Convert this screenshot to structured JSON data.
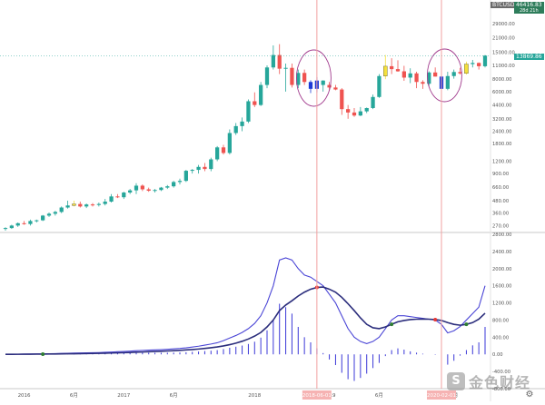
{
  "header": {
    "symbol": "BTCUSD",
    "price": "46416.83",
    "countdown": "28d 21h",
    "last_price": "13869.86"
  },
  "watermark": {
    "text": "金色财经",
    "logo_glyph": "S"
  },
  "settings_icon": "gear-icon",
  "colors": {
    "up": "#26a69a",
    "down": "#ef5350",
    "doji": "#f4e03c",
    "highlight": "#1d3bd6",
    "macd_line": "#2b2d7c",
    "signal_line": "#4b46d6",
    "histogram": "#3b38d8",
    "cross_down": "#e53935",
    "cross_up": "#2e7d32",
    "ellipse": "#a23c8e",
    "vline": "#f2a0a0"
  },
  "chart_data": [
    {
      "type": "candlestick",
      "y_scale": "log",
      "ylim": [
        240,
        46000
      ],
      "y_ticks": [
        "29000.00",
        "21000.00",
        "15000.00",
        "11000.00",
        "8000.00",
        "6000.00",
        "4400.00",
        "3200.00",
        "2400.00",
        "1800.00",
        "1200.00",
        "900.00",
        "660.00",
        "480.00",
        "360.00",
        "270.00"
      ],
      "x_ticks": [
        "2016",
        "6月",
        "2017",
        "6月",
        "2018",
        "2019",
        "6月",
        "6月"
      ],
      "x_highlight_labels": [
        "2018-06-01",
        "2020-02-01"
      ],
      "candles": [
        {
          "o": 250,
          "h": 260,
          "l": 240,
          "c": 255,
          "color": "up"
        },
        {
          "o": 255,
          "h": 275,
          "l": 250,
          "c": 270,
          "color": "up"
        },
        {
          "o": 270,
          "h": 290,
          "l": 262,
          "c": 285,
          "color": "up"
        },
        {
          "o": 285,
          "h": 300,
          "l": 275,
          "c": 280,
          "color": "down"
        },
        {
          "o": 280,
          "h": 310,
          "l": 270,
          "c": 300,
          "color": "up"
        },
        {
          "o": 300,
          "h": 310,
          "l": 290,
          "c": 305,
          "color": "up"
        },
        {
          "o": 305,
          "h": 345,
          "l": 300,
          "c": 340,
          "color": "up"
        },
        {
          "o": 340,
          "h": 365,
          "l": 330,
          "c": 355,
          "color": "up"
        },
        {
          "o": 355,
          "h": 380,
          "l": 340,
          "c": 370,
          "color": "up"
        },
        {
          "o": 370,
          "h": 420,
          "l": 360,
          "c": 410,
          "color": "up"
        },
        {
          "o": 410,
          "h": 480,
          "l": 400,
          "c": 430,
          "color": "up"
        },
        {
          "o": 430,
          "h": 480,
          "l": 420,
          "c": 445,
          "color": "doji"
        },
        {
          "o": 445,
          "h": 470,
          "l": 410,
          "c": 420,
          "color": "down"
        },
        {
          "o": 420,
          "h": 450,
          "l": 405,
          "c": 440,
          "color": "up"
        },
        {
          "o": 440,
          "h": 455,
          "l": 420,
          "c": 435,
          "color": "down"
        },
        {
          "o": 435,
          "h": 460,
          "l": 420,
          "c": 445,
          "color": "up"
        },
        {
          "o": 445,
          "h": 500,
          "l": 430,
          "c": 470,
          "color": "up"
        },
        {
          "o": 470,
          "h": 560,
          "l": 460,
          "c": 530,
          "color": "up"
        },
        {
          "o": 530,
          "h": 560,
          "l": 510,
          "c": 520,
          "color": "down"
        },
        {
          "o": 520,
          "h": 590,
          "l": 500,
          "c": 580,
          "color": "up"
        },
        {
          "o": 580,
          "h": 630,
          "l": 560,
          "c": 610,
          "color": "up"
        },
        {
          "o": 610,
          "h": 720,
          "l": 560,
          "c": 680,
          "color": "up"
        },
        {
          "o": 680,
          "h": 700,
          "l": 600,
          "c": 625,
          "color": "down"
        },
        {
          "o": 625,
          "h": 650,
          "l": 590,
          "c": 605,
          "color": "down"
        },
        {
          "o": 605,
          "h": 630,
          "l": 580,
          "c": 615,
          "color": "up"
        },
        {
          "o": 615,
          "h": 660,
          "l": 600,
          "c": 650,
          "color": "up"
        },
        {
          "o": 650,
          "h": 690,
          "l": 630,
          "c": 670,
          "color": "up"
        },
        {
          "o": 670,
          "h": 760,
          "l": 650,
          "c": 740,
          "color": "up"
        },
        {
          "o": 740,
          "h": 800,
          "l": 700,
          "c": 760,
          "color": "up"
        },
        {
          "o": 760,
          "h": 980,
          "l": 740,
          "c": 960,
          "color": "up"
        },
        {
          "o": 960,
          "h": 1000,
          "l": 900,
          "c": 980,
          "color": "up"
        },
        {
          "o": 980,
          "h": 1100,
          "l": 900,
          "c": 1050,
          "color": "up"
        },
        {
          "o": 1050,
          "h": 1150,
          "l": 950,
          "c": 1000,
          "color": "down"
        },
        {
          "o": 1000,
          "h": 1300,
          "l": 950,
          "c": 1250,
          "color": "up"
        },
        {
          "o": 1250,
          "h": 1700,
          "l": 1200,
          "c": 1650,
          "color": "up"
        },
        {
          "o": 1650,
          "h": 1750,
          "l": 1400,
          "c": 1450,
          "color": "down"
        },
        {
          "o": 1450,
          "h": 2500,
          "l": 1400,
          "c": 2300,
          "color": "up"
        },
        {
          "o": 2300,
          "h": 2900,
          "l": 2200,
          "c": 2700,
          "color": "up"
        },
        {
          "o": 2700,
          "h": 3300,
          "l": 2400,
          "c": 3000,
          "color": "up"
        },
        {
          "o": 3000,
          "h": 5000,
          "l": 2900,
          "c": 4800,
          "color": "up"
        },
        {
          "o": 4800,
          "h": 5900,
          "l": 4200,
          "c": 4400,
          "color": "down"
        },
        {
          "o": 4400,
          "h": 7500,
          "l": 4300,
          "c": 7000,
          "color": "up"
        },
        {
          "o": 7000,
          "h": 11000,
          "l": 6500,
          "c": 10500,
          "color": "up"
        },
        {
          "o": 10500,
          "h": 17500,
          "l": 10000,
          "c": 14000,
          "color": "up"
        },
        {
          "o": 14000,
          "h": 18000,
          "l": 9000,
          "c": 10200,
          "color": "down"
        },
        {
          "o": 10200,
          "h": 11500,
          "l": 6000,
          "c": 10400,
          "color": "up"
        },
        {
          "o": 10400,
          "h": 11500,
          "l": 6600,
          "c": 7000,
          "color": "down"
        },
        {
          "o": 7000,
          "h": 10000,
          "l": 6500,
          "c": 9250,
          "color": "up"
        },
        {
          "o": 9250,
          "h": 10000,
          "l": 7000,
          "c": 7500,
          "color": "down"
        },
        {
          "o": 7500,
          "h": 7800,
          "l": 5800,
          "c": 6400,
          "color": "highlight"
        },
        {
          "o": 6400,
          "h": 8400,
          "l": 5900,
          "c": 7750,
          "color": "highlight"
        },
        {
          "o": 7750,
          "h": 7800,
          "l": 6000,
          "c": 7000,
          "color": "up"
        },
        {
          "o": 7000,
          "h": 7500,
          "l": 6100,
          "c": 6600,
          "color": "down"
        },
        {
          "o": 6600,
          "h": 7000,
          "l": 6200,
          "c": 6300,
          "color": "down"
        },
        {
          "o": 6300,
          "h": 6500,
          "l": 3500,
          "c": 4000,
          "color": "down"
        },
        {
          "o": 4000,
          "h": 4400,
          "l": 3200,
          "c": 3700,
          "color": "down"
        },
        {
          "o": 3700,
          "h": 4100,
          "l": 3350,
          "c": 3450,
          "color": "down"
        },
        {
          "o": 3450,
          "h": 4200,
          "l": 3400,
          "c": 3800,
          "color": "up"
        },
        {
          "o": 3800,
          "h": 4150,
          "l": 3650,
          "c": 4100,
          "color": "up"
        },
        {
          "o": 4100,
          "h": 5600,
          "l": 4000,
          "c": 5300,
          "color": "up"
        },
        {
          "o": 5300,
          "h": 9000,
          "l": 5200,
          "c": 8600,
          "color": "up"
        },
        {
          "o": 8600,
          "h": 14000,
          "l": 8000,
          "c": 10800,
          "color": "doji"
        },
        {
          "o": 10800,
          "h": 13000,
          "l": 9000,
          "c": 10100,
          "color": "down"
        },
        {
          "o": 10100,
          "h": 12400,
          "l": 9500,
          "c": 9600,
          "color": "down"
        },
        {
          "o": 9600,
          "h": 10900,
          "l": 7700,
          "c": 8300,
          "color": "down"
        },
        {
          "o": 8300,
          "h": 10300,
          "l": 7300,
          "c": 9150,
          "color": "up"
        },
        {
          "o": 9150,
          "h": 9500,
          "l": 6500,
          "c": 7500,
          "color": "down"
        },
        {
          "o": 7500,
          "h": 7800,
          "l": 6400,
          "c": 7200,
          "color": "down"
        },
        {
          "o": 7200,
          "h": 9600,
          "l": 6850,
          "c": 9350,
          "color": "up"
        },
        {
          "o": 9350,
          "h": 10500,
          "l": 8500,
          "c": 8500,
          "color": "down"
        },
        {
          "o": 8500,
          "h": 9200,
          "l": 3800,
          "c": 6400,
          "color": "highlight"
        },
        {
          "o": 6400,
          "h": 9500,
          "l": 6200,
          "c": 8600,
          "color": "up"
        },
        {
          "o": 8600,
          "h": 10000,
          "l": 8100,
          "c": 9450,
          "color": "up"
        },
        {
          "o": 9450,
          "h": 10400,
          "l": 8900,
          "c": 9150,
          "color": "down"
        },
        {
          "o": 9150,
          "h": 12000,
          "l": 8900,
          "c": 11350,
          "color": "doji"
        },
        {
          "o": 11350,
          "h": 12500,
          "l": 10500,
          "c": 11650,
          "color": "up"
        },
        {
          "o": 11650,
          "h": 11800,
          "l": 10000,
          "c": 10800,
          "color": "down"
        },
        {
          "o": 10800,
          "h": 14000,
          "l": 10500,
          "c": 13800,
          "color": "up"
        }
      ]
    },
    {
      "type": "macd",
      "ylim": [
        -800,
        2800
      ],
      "y_ticks": [
        "2800.00",
        "2400.00",
        "2000.00",
        "1600.00",
        "1200.00",
        "800.00",
        "400.00",
        "0.00",
        "-400.00",
        "-800.00"
      ],
      "fast_series": [
        0,
        2,
        4,
        6,
        8,
        10,
        12,
        15,
        18,
        22,
        26,
        30,
        33,
        35,
        38,
        42,
        48,
        55,
        62,
        68,
        75,
        85,
        92,
        98,
        104,
        110,
        118,
        128,
        138,
        152,
        170,
        190,
        215,
        240,
        270,
        320,
        380,
        440,
        510,
        600,
        720,
        900,
        1200,
        1600,
        2200,
        2250,
        2200,
        2000,
        1850,
        1800,
        1700,
        1600,
        1400,
        1200,
        900,
        600,
        400,
        300,
        250,
        300,
        400,
        600,
        800,
        900,
        900,
        880,
        860,
        840,
        820,
        800,
        700,
        500,
        550,
        650,
        800,
        950,
        1100,
        1600
      ],
      "signal_series": [
        0,
        1,
        2,
        3,
        4,
        5,
        6,
        8,
        9,
        11,
        13,
        15,
        17,
        19,
        21,
        24,
        27,
        31,
        35,
        39,
        44,
        50,
        55,
        61,
        67,
        73,
        79,
        86,
        94,
        103,
        112,
        124,
        138,
        154,
        172,
        196,
        226,
        262,
        305,
        358,
        425,
        510,
        640,
        800,
        1020,
        1150,
        1250,
        1360,
        1450,
        1520,
        1560,
        1570,
        1520,
        1450,
        1330,
        1180,
        1020,
        850,
        700,
        620,
        600,
        640,
        700,
        760,
        790,
        810,
        820,
        825,
        820,
        810,
        790,
        740,
        700,
        680,
        700,
        740,
        820,
        960
      ],
      "histogram": [
        0,
        1,
        2,
        3,
        4,
        5,
        6,
        7,
        9,
        11,
        13,
        15,
        16,
        16,
        17,
        18,
        21,
        24,
        27,
        29,
        31,
        35,
        37,
        37,
        37,
        37,
        39,
        42,
        44,
        49,
        58,
        66,
        77,
        86,
        98,
        124,
        154,
        178,
        205,
        242,
        295,
        390,
        560,
        800,
        1180,
        1100,
        950,
        640,
        400,
        280,
        140,
        30,
        -120,
        -250,
        -430,
        -580,
        -620,
        -550,
        -450,
        -320,
        -200,
        -40,
        100,
        140,
        110,
        70,
        40,
        15,
        0,
        -10,
        -90,
        -240,
        -150,
        -30,
        100,
        210,
        280,
        640
      ],
      "cross_points": [
        {
          "index": 50,
          "direction": "down"
        },
        {
          "index": 62,
          "direction": "up"
        },
        {
          "index": 69,
          "direction": "down"
        },
        {
          "index": 74,
          "direction": "up"
        },
        {
          "index": 6,
          "direction": "up"
        }
      ]
    }
  ]
}
